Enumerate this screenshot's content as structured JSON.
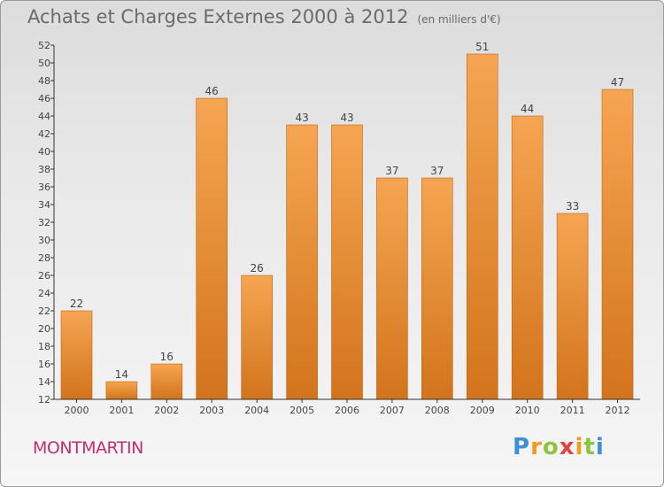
{
  "header": {
    "title": "Achats et Charges Externes 2000 à 2012",
    "unit": "(en milliers d'€)"
  },
  "footer": {
    "commune": "MONTMARTIN",
    "logo_text": "Proxiti"
  },
  "colors": {
    "bar_top": "#f6a552",
    "bar_bottom": "#d2741c",
    "bar_edge": "#c06515",
    "axis": "#333333",
    "grid": "#555555",
    "text": "#444444",
    "title": "#6a6a6a",
    "commune": "#c0306e"
  },
  "chart_data": {
    "type": "bar",
    "title": "Achats et Charges Externes 2000 à 2012",
    "subtitle": "(en milliers d'€)",
    "xlabel": "",
    "ylabel": "",
    "categories": [
      "2000",
      "2001",
      "2002",
      "2003",
      "2004",
      "2005",
      "2006",
      "2007",
      "2008",
      "2009",
      "2010",
      "2011",
      "2012"
    ],
    "values": [
      22,
      14,
      16,
      46,
      26,
      43,
      43,
      37,
      37,
      51,
      44,
      33,
      47
    ],
    "data_labels": [
      "22",
      "14",
      "16",
      "46",
      "26",
      "43",
      "43",
      "37",
      "37",
      "51",
      "44",
      "33",
      "47"
    ],
    "ylim": [
      12,
      52
    ],
    "yticks": [
      12,
      14,
      16,
      18,
      20,
      22,
      24,
      26,
      28,
      30,
      32,
      34,
      36,
      38,
      40,
      42,
      44,
      46,
      48,
      50,
      52
    ],
    "grid": false,
    "legend": "none"
  }
}
